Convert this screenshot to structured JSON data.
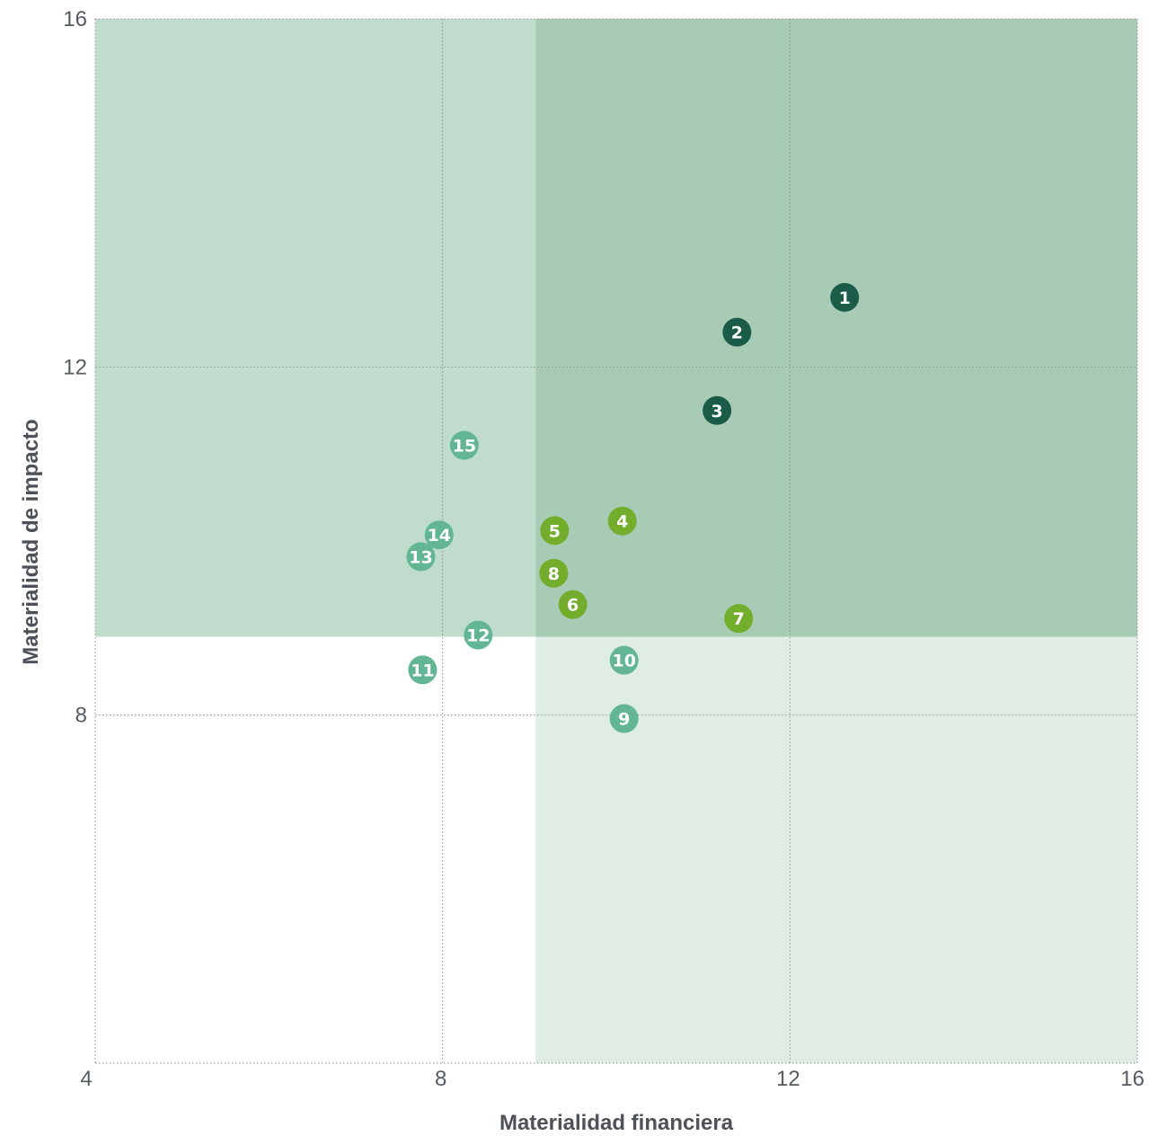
{
  "chart_data": {
    "type": "scatter",
    "xlabel": "Materialidad financiera",
    "ylabel": "Materialidad de impacto",
    "xlim": [
      4,
      16
    ],
    "ylim": [
      4,
      16
    ],
    "x_ticks": [
      "4",
      "8",
      "12",
      "16"
    ],
    "y_ticks": [
      "16",
      "12",
      "8"
    ],
    "grid": true,
    "thresholds": {
      "x": 9.07,
      "y": 8.9
    },
    "region_colors": {
      "top_left": "#c0dccd",
      "top_right": "#a8cbb5",
      "bottom_right": "#e0ede4",
      "bottom_left": "#ffffff"
    },
    "colors": {
      "dark": "#1a5c48",
      "lime": "#72ad2c",
      "teal": "#62b693"
    },
    "points": [
      {
        "label": "1",
        "x": 12.63,
        "y": 12.8,
        "color": "dark"
      },
      {
        "label": "2",
        "x": 11.39,
        "y": 12.4,
        "color": "dark"
      },
      {
        "label": "3",
        "x": 11.16,
        "y": 11.5,
        "color": "dark"
      },
      {
        "label": "4",
        "x": 10.07,
        "y": 10.23,
        "color": "lime"
      },
      {
        "label": "5",
        "x": 9.29,
        "y": 10.12,
        "color": "lime"
      },
      {
        "label": "6",
        "x": 9.5,
        "y": 9.27,
        "color": "lime"
      },
      {
        "label": "7",
        "x": 11.41,
        "y": 9.11,
        "color": "lime"
      },
      {
        "label": "8",
        "x": 9.28,
        "y": 9.63,
        "color": "lime"
      },
      {
        "label": "9",
        "x": 10.09,
        "y": 7.96,
        "color": "teal"
      },
      {
        "label": "10",
        "x": 10.09,
        "y": 8.63,
        "color": "teal"
      },
      {
        "label": "11",
        "x": 7.77,
        "y": 8.52,
        "color": "teal"
      },
      {
        "label": "12",
        "x": 8.41,
        "y": 8.92,
        "color": "teal"
      },
      {
        "label": "13",
        "x": 7.75,
        "y": 9.82,
        "color": "teal"
      },
      {
        "label": "14",
        "x": 7.96,
        "y": 10.07,
        "color": "teal"
      },
      {
        "label": "15",
        "x": 8.25,
        "y": 11.1,
        "color": "teal"
      }
    ]
  }
}
